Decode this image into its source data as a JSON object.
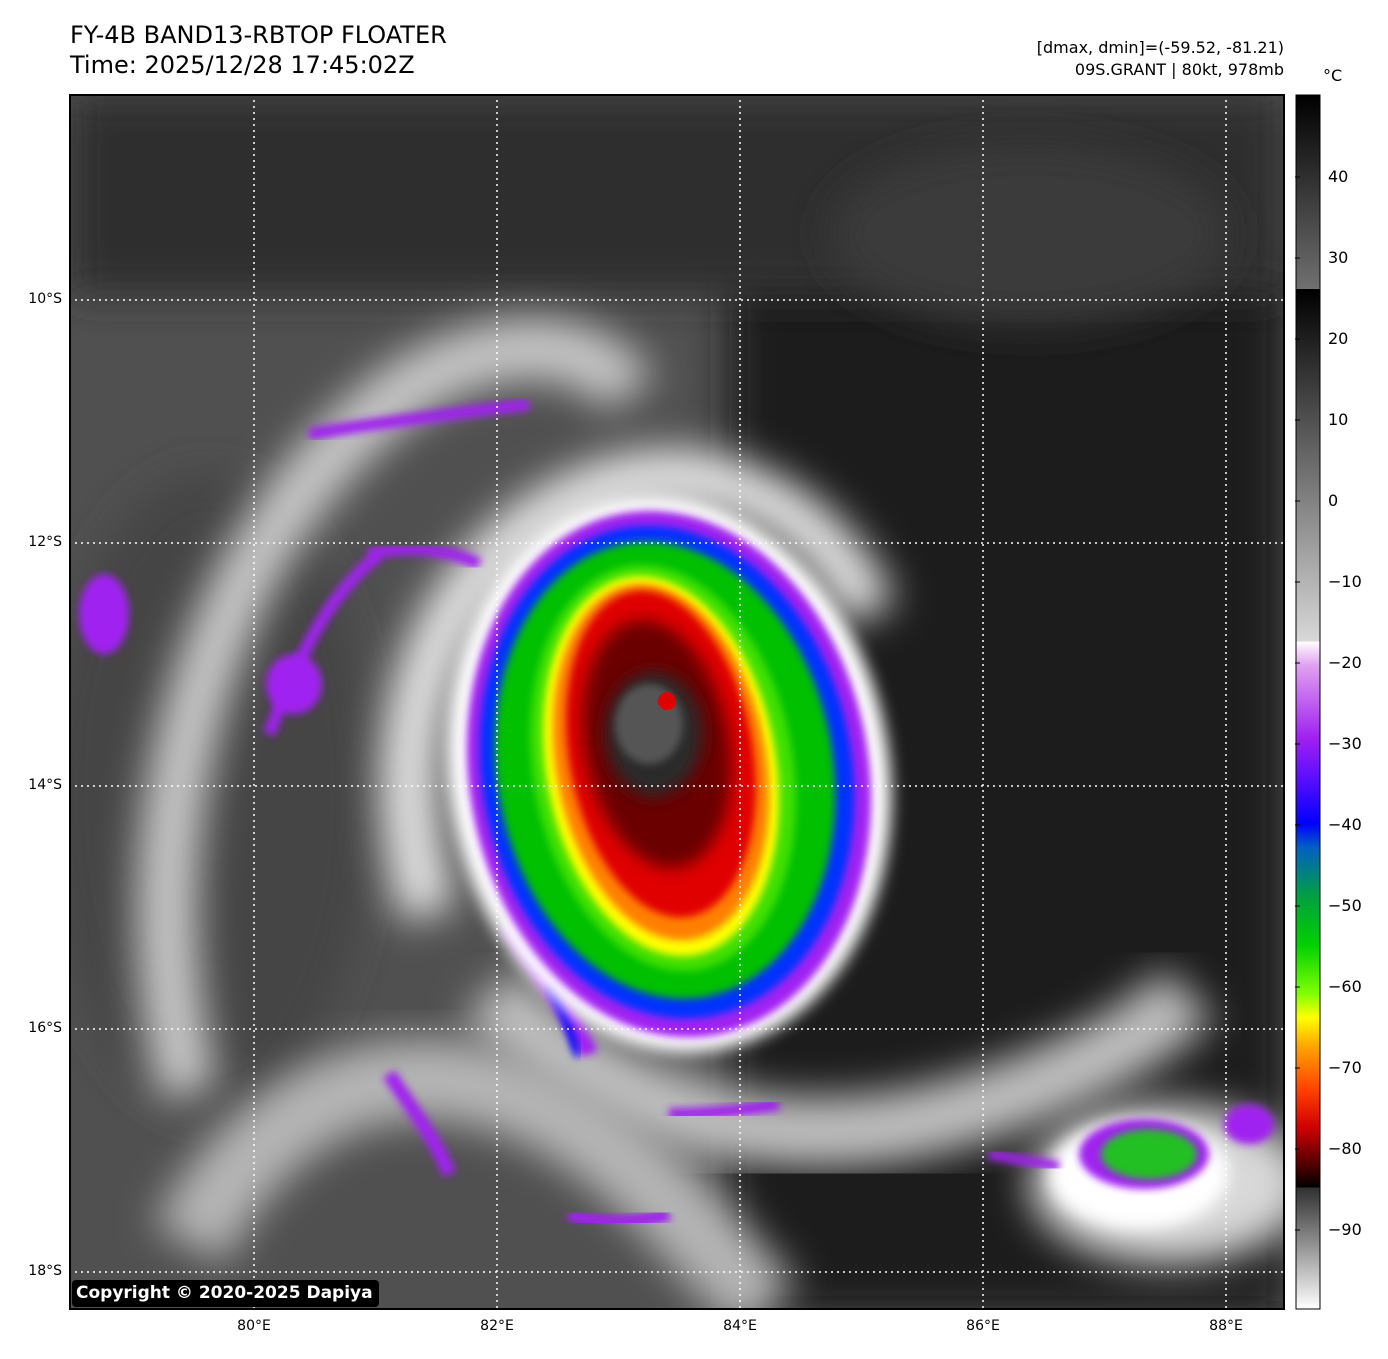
{
  "header": {
    "title_line1": "FY-4B BAND13-RBTOP FLOATER",
    "title_line2": "Time: 2025/12/28 17:45:02Z",
    "info_line1": "[dmax, dmin]=(-59.52, -81.21)",
    "info_line2": "09S.GRANT | 80kt, 978mb"
  },
  "map": {
    "lat_labels": [
      "10°S",
      "12°S",
      "14°S",
      "16°S",
      "18°S"
    ],
    "lon_labels": [
      "80°E",
      "82°E",
      "84°E",
      "86°E",
      "88°E"
    ],
    "storm_name": "GRANT",
    "storm_id": "09S",
    "intensity_kt": 80,
    "pressure_mb": 978
  },
  "colorbar": {
    "unit": "°C",
    "ticks": [
      "40",
      "30",
      "20",
      "10",
      "0",
      "−10",
      "−20",
      "−30",
      "−40",
      "−50",
      "−60",
      "−70",
      "−80",
      "−90"
    ],
    "colors": {
      "purple": "#a020f0",
      "blue": "#0000ff",
      "green": "#00c000",
      "yellow": "#ffff00",
      "orange": "#ff8000",
      "red": "#e00000",
      "dark_red": "#500000"
    }
  },
  "copyright": "Copyright © 2020-2025 Dapiya"
}
